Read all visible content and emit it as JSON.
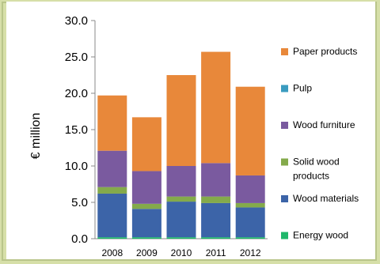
{
  "chart_data": {
    "type": "bar",
    "stacked": true,
    "categories": [
      "2008",
      "2009",
      "2010",
      "2011",
      "2012"
    ],
    "ylabel": "€ million",
    "ylim": [
      0,
      30
    ],
    "yticks": [
      "0.0",
      "5.0",
      "10.0",
      "15.0",
      "20.0",
      "25.0",
      "30.0"
    ],
    "legend_position": "right",
    "grid": false,
    "series": [
      {
        "name": "Energy wood",
        "color": "#1fb76a",
        "values": [
          0.2,
          0.2,
          0.2,
          0.2,
          0.2
        ]
      },
      {
        "name": "Wood materials",
        "color": "#3c64a8",
        "values": [
          6.0,
          3.9,
          4.9,
          4.7,
          4.1
        ]
      },
      {
        "name": "Solid wood products",
        "color": "#84aa4b",
        "values": [
          0.9,
          0.7,
          0.7,
          0.9,
          0.6
        ]
      },
      {
        "name": "Wood furniture",
        "color": "#7a5a9f",
        "values": [
          5.0,
          4.5,
          4.2,
          4.6,
          3.8
        ]
      },
      {
        "name": "Pulp",
        "color": "#3a9bbf",
        "values": [
          0.0,
          0.0,
          0.0,
          0.0,
          0.0
        ]
      },
      {
        "name": "Paper products",
        "color": "#e8883a",
        "values": [
          7.6,
          7.4,
          12.5,
          15.3,
          12.2
        ]
      }
    ],
    "legend_order": [
      "Paper products",
      "Pulp",
      "Wood furniture",
      "Solid wood products",
      "Wood materials",
      "Energy wood"
    ],
    "legend_lines": {
      "Paper products": [
        "Paper products"
      ],
      "Pulp": [
        "Pulp"
      ],
      "Wood furniture": [
        "Wood furniture"
      ],
      "Solid wood products": [
        "Solid wood",
        "products"
      ],
      "Wood materials": [
        "Wood materials"
      ],
      "Energy wood": [
        "Energy wood"
      ]
    }
  }
}
